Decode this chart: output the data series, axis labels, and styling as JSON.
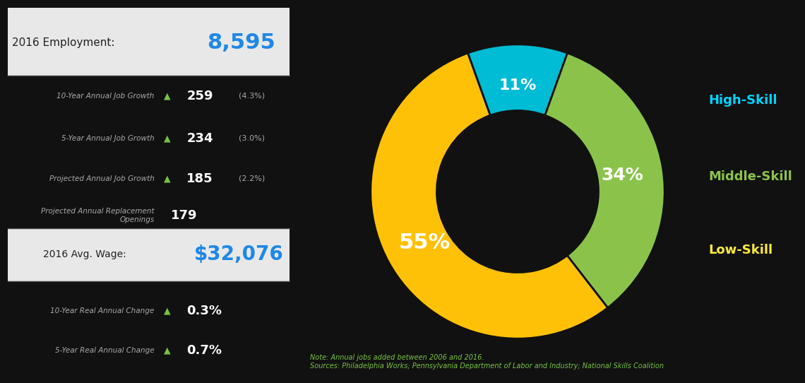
{
  "employment_label": "2016 Employment:",
  "employment_value": "8,595",
  "wage_label": "2016 Avg. Wage:",
  "wage_value": "$32,076",
  "stats": [
    {
      "label": "10-Year Annual Job Growth",
      "arrow": true,
      "value": "259",
      "pct": "(4.3%)"
    },
    {
      "label": "5-Year Annual Job Growth",
      "arrow": true,
      "value": "234",
      "pct": "(3.0%)"
    },
    {
      "label": "Projected Annual Job Growth",
      "arrow": true,
      "value": "185",
      "pct": "(2.2%)"
    },
    {
      "label": "Projected Annual Replacement\nOpenings",
      "arrow": false,
      "value": "179",
      "pct": ""
    }
  ],
  "wage_stats": [
    {
      "label": "10-Year Real Annual Change",
      "arrow": true,
      "value": "0.3%"
    },
    {
      "label": "5-Year Real Annual Change",
      "arrow": true,
      "value": "0.7%"
    }
  ],
  "pie_values": [
    11,
    34,
    55
  ],
  "pie_labels": [
    "High-Skill",
    "Middle-Skill",
    "Low-Skill"
  ],
  "pie_colors": [
    "#00bcd4",
    "#8bc34a",
    "#ffc107"
  ],
  "pie_pct_labels": [
    "11%",
    "34%",
    "55%"
  ],
  "pie_label_colors": [
    "#00d4ff",
    "#8bc34a",
    "#ffeb3b"
  ],
  "note_line1": "Note: Annual jobs added between 2006 and 2016.",
  "note_line2": "Sources: Philadelphia Works; Pennsylvania Department of Labor and Industry; National Skills Coalition",
  "bg_dark": "#111111",
  "bg_light": "#e8e8e8",
  "text_blue": "#1e88e5",
  "text_green": "#76c442",
  "text_white": "#ffffff",
  "text_dark": "#222222"
}
